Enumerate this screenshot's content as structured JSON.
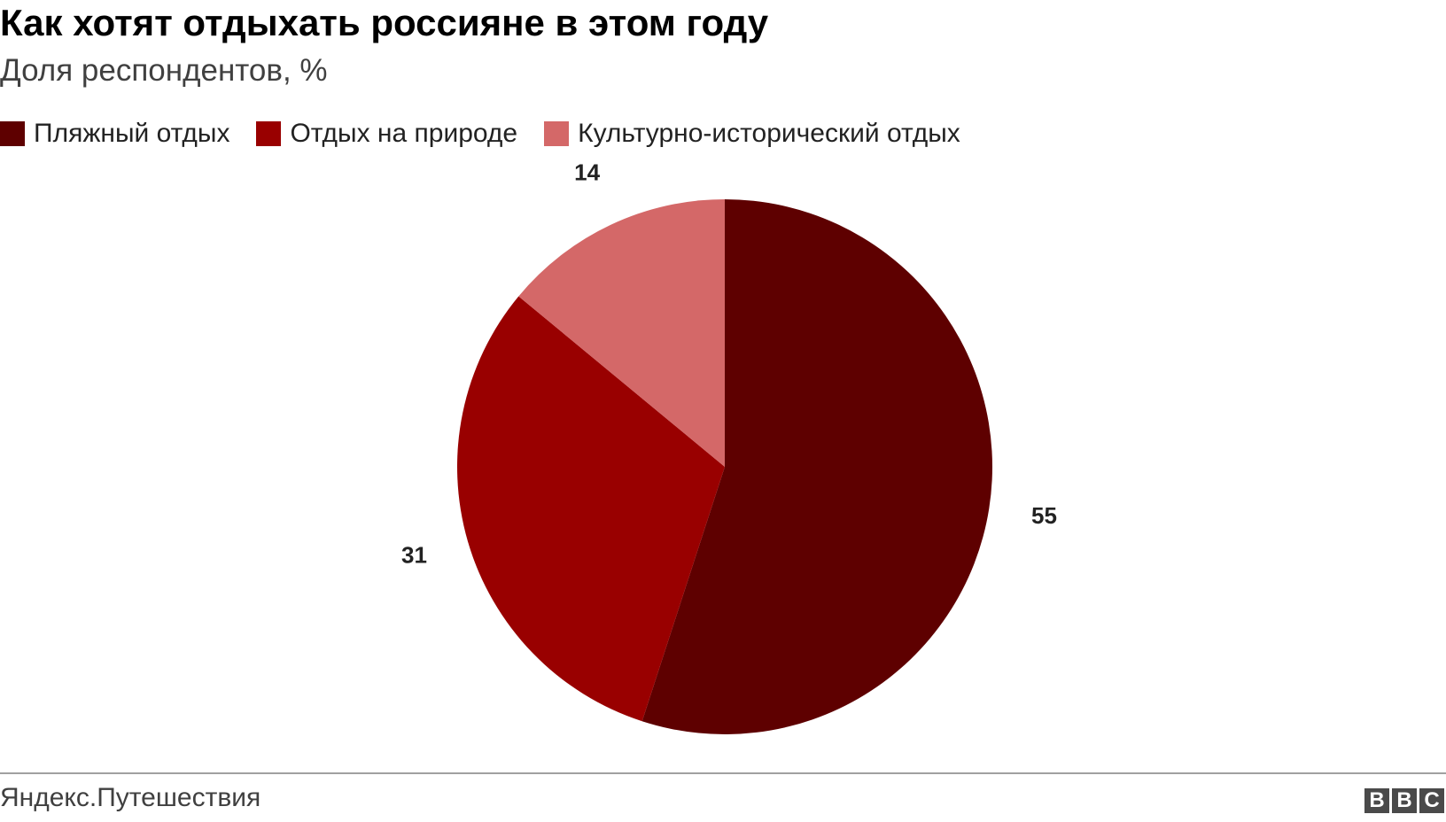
{
  "chart_data": {
    "type": "pie",
    "title": "Как хотят отдыхать россияне в этом году",
    "subtitle": "Доля респондентов, %",
    "categories": [
      "Пляжный отдых",
      "Отдых на природе",
      "Культурно-исторический отдых"
    ],
    "values": [
      55,
      31,
      14
    ],
    "colors": [
      "#5e0000",
      "#990000",
      "#d46868"
    ],
    "legend_position": "top-left",
    "start_angle": "12 o'clock",
    "direction": "clockwise"
  },
  "footer": {
    "source": "Яндекс.Путешествия",
    "logo_letters": [
      "B",
      "B",
      "C"
    ]
  }
}
